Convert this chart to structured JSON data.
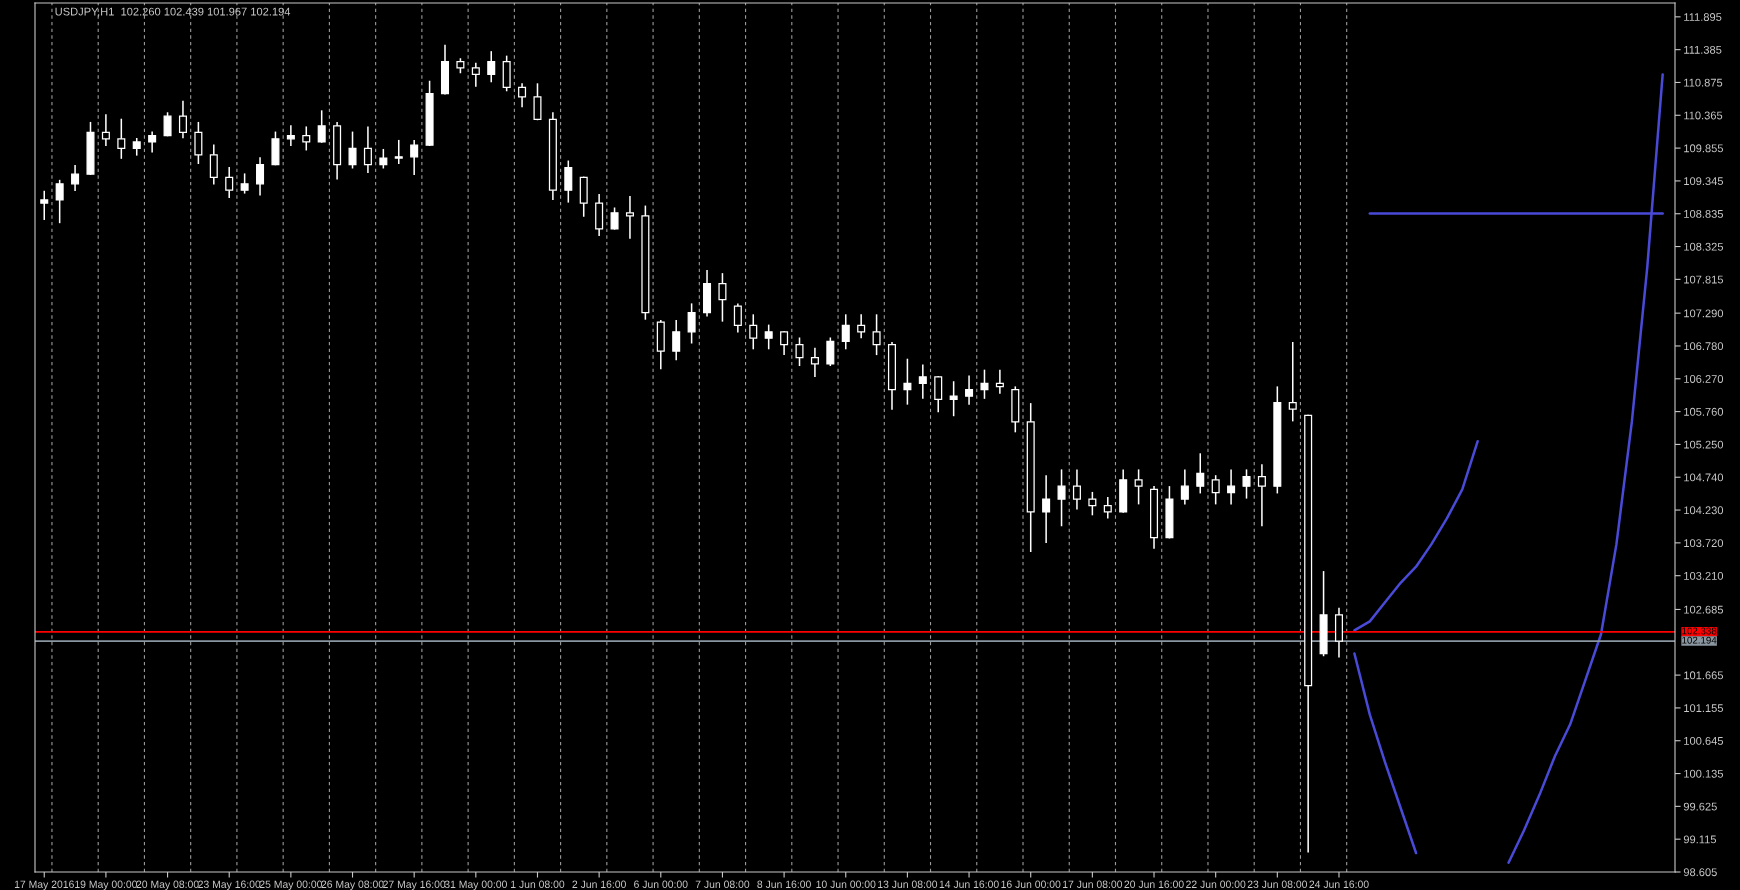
{
  "chart_data": {
    "type": "candlestick",
    "title": "USDJPY,H1  102.260 102.439 101.967 102.194",
    "color": "#ffffff",
    "categories": [
      "17 May 2016",
      null,
      null,
      null,
      "19 May 00:00",
      null,
      null,
      null,
      "20 May 08:00",
      null,
      null,
      null,
      "23 May 16:00",
      null,
      null,
      null,
      "25 May 00:00",
      null,
      null,
      null,
      "26 May 08:00",
      null,
      null,
      null,
      "27 May 16:00",
      null,
      null,
      null,
      "31 May 00:00",
      null,
      null,
      null,
      "1 Jun 08:00",
      null,
      null,
      null,
      "2 Jun 16:00",
      null,
      null,
      null,
      "6 Jun 00:00",
      null,
      null,
      null,
      "7 Jun 08:00",
      null,
      null,
      null,
      "8 Jun 16:00",
      null,
      null,
      null,
      "10 Jun 00:00",
      null,
      null,
      null,
      "13 Jun 08:00",
      null,
      null,
      null,
      "14 Jun 16:00",
      null,
      null,
      null,
      "16 Jun 00:00",
      null,
      null,
      null,
      "17 Jun 08:00",
      null,
      null,
      null,
      "20 Jun 16:00",
      null,
      null,
      null,
      "22 Jun 00:00",
      null,
      null,
      null,
      "23 Jun 08:00",
      null,
      null,
      null,
      "24 Jun 16:00",
      null,
      null,
      null,
      null,
      null,
      null,
      null,
      null,
      null,
      null,
      null,
      null,
      null,
      null,
      null,
      null,
      null,
      null,
      null,
      null,
      null
    ],
    "ohlc": [
      [
        109.0,
        109.18,
        108.75,
        109.05
      ],
      [
        109.05,
        109.35,
        108.7,
        109.3
      ],
      [
        109.3,
        109.58,
        109.2,
        109.45
      ],
      [
        109.45,
        110.25,
        109.45,
        110.1
      ],
      [
        110.1,
        110.37,
        109.9,
        110.0
      ],
      [
        110.0,
        110.3,
        109.7,
        109.85
      ],
      [
        109.85,
        110.0,
        109.75,
        109.95
      ],
      [
        109.95,
        110.1,
        109.8,
        110.05
      ],
      [
        110.05,
        110.4,
        110.05,
        110.35
      ],
      [
        110.35,
        110.58,
        110.02,
        110.1
      ],
      [
        110.1,
        110.25,
        109.62,
        109.75
      ],
      [
        109.75,
        109.9,
        109.3,
        109.4
      ],
      [
        109.4,
        109.55,
        109.09,
        109.2
      ],
      [
        109.2,
        109.45,
        109.16,
        109.3
      ],
      [
        109.3,
        109.7,
        109.13,
        109.6
      ],
      [
        109.6,
        110.1,
        109.6,
        110.0
      ],
      [
        110.0,
        110.2,
        109.9,
        110.05
      ],
      [
        110.05,
        110.18,
        109.83,
        109.95
      ],
      [
        109.95,
        110.43,
        109.95,
        110.2
      ],
      [
        110.2,
        110.25,
        109.38,
        109.6
      ],
      [
        109.6,
        110.1,
        109.55,
        109.85
      ],
      [
        109.85,
        110.18,
        109.48,
        109.6
      ],
      [
        109.6,
        109.83,
        109.55,
        109.7
      ],
      [
        109.7,
        109.97,
        109.62,
        109.72
      ],
      [
        109.72,
        109.97,
        109.45,
        109.9
      ],
      [
        109.9,
        110.89,
        109.9,
        110.7
      ],
      [
        110.7,
        111.45,
        110.7,
        111.2
      ],
      [
        111.2,
        111.24,
        111.03,
        111.1
      ],
      [
        111.1,
        111.17,
        110.82,
        111.0
      ],
      [
        111.0,
        111.35,
        110.89,
        111.2
      ],
      [
        111.2,
        111.28,
        110.75,
        110.8
      ],
      [
        110.8,
        110.85,
        110.5,
        110.65
      ],
      [
        110.65,
        110.85,
        110.3,
        110.3
      ],
      [
        110.3,
        110.4,
        109.06,
        109.2
      ],
      [
        109.2,
        109.65,
        109.02,
        109.55
      ],
      [
        109.4,
        109.4,
        108.8,
        109.0
      ],
      [
        109.0,
        109.13,
        108.5,
        108.6
      ],
      [
        108.6,
        108.92,
        108.6,
        108.85
      ],
      [
        108.85,
        109.1,
        108.46,
        108.8
      ],
      [
        108.8,
        108.95,
        107.2,
        107.3
      ],
      [
        107.15,
        107.17,
        106.43,
        106.7
      ],
      [
        106.7,
        107.17,
        106.57,
        107.0
      ],
      [
        107.0,
        107.43,
        106.83,
        107.3
      ],
      [
        107.3,
        107.95,
        107.25,
        107.75
      ],
      [
        107.75,
        107.9,
        107.17,
        107.5
      ],
      [
        107.4,
        107.43,
        107.0,
        107.1
      ],
      [
        107.1,
        107.26,
        106.74,
        106.9
      ],
      [
        106.9,
        107.1,
        106.74,
        107.0
      ],
      [
        107.0,
        107.0,
        106.65,
        106.8
      ],
      [
        106.8,
        106.9,
        106.48,
        106.6
      ],
      [
        106.6,
        106.74,
        106.31,
        106.5
      ],
      [
        106.5,
        106.9,
        106.48,
        106.85
      ],
      [
        106.85,
        107.26,
        106.74,
        107.1
      ],
      [
        107.1,
        107.26,
        106.91,
        107.0
      ],
      [
        107.0,
        107.26,
        106.65,
        106.8
      ],
      [
        106.8,
        106.83,
        105.8,
        106.1
      ],
      [
        106.1,
        106.57,
        105.88,
        106.2
      ],
      [
        106.2,
        106.48,
        105.97,
        106.3
      ],
      [
        106.3,
        106.3,
        105.76,
        105.95
      ],
      [
        105.95,
        106.22,
        105.7,
        106.0
      ],
      [
        106.0,
        106.31,
        105.88,
        106.1
      ],
      [
        106.1,
        106.4,
        105.97,
        106.2
      ],
      [
        106.2,
        106.4,
        106.05,
        106.15
      ],
      [
        106.1,
        106.14,
        105.45,
        105.6
      ],
      [
        105.6,
        105.88,
        103.59,
        104.2
      ],
      [
        104.2,
        104.76,
        103.73,
        104.4
      ],
      [
        104.4,
        104.85,
        103.99,
        104.6
      ],
      [
        104.6,
        104.85,
        104.25,
        104.4
      ],
      [
        104.4,
        104.5,
        104.16,
        104.3
      ],
      [
        104.3,
        104.42,
        104.11,
        104.2
      ],
      [
        104.2,
        104.85,
        104.2,
        104.7
      ],
      [
        104.7,
        104.85,
        104.33,
        104.6
      ],
      [
        104.55,
        104.59,
        103.64,
        103.8
      ],
      [
        103.8,
        104.59,
        103.8,
        104.4
      ],
      [
        104.4,
        104.85,
        104.33,
        104.6
      ],
      [
        104.6,
        105.1,
        104.5,
        104.8
      ],
      [
        104.7,
        104.76,
        104.33,
        104.5
      ],
      [
        104.5,
        104.85,
        104.33,
        104.6
      ],
      [
        104.6,
        104.85,
        104.42,
        104.75
      ],
      [
        104.75,
        104.93,
        103.99,
        104.6
      ],
      [
        104.6,
        106.14,
        104.5,
        105.9
      ],
      [
        105.9,
        106.83,
        105.62,
        105.8
      ],
      [
        105.7,
        105.7,
        98.92,
        101.5
      ],
      [
        102.0,
        103.27,
        101.97,
        102.6
      ],
      [
        102.6,
        102.7,
        101.95,
        102.194
      ],
      null,
      null,
      null,
      null,
      null,
      null,
      null,
      null,
      null,
      null,
      null,
      null,
      null,
      null,
      null,
      null,
      null,
      null,
      null,
      null,
      null
    ],
    "series": [
      {
        "type": "line",
        "color": "#4a4ad8",
        "values": [
          null,
          null,
          null,
          null,
          null,
          null,
          null,
          null,
          null,
          null,
          null,
          null,
          null,
          null,
          null,
          null,
          null,
          null,
          null,
          null,
          null,
          null,
          null,
          null,
          null,
          null,
          null,
          null,
          null,
          null,
          null,
          null,
          null,
          null,
          null,
          null,
          null,
          null,
          null,
          null,
          null,
          null,
          null,
          null,
          null,
          null,
          null,
          null,
          null,
          null,
          null,
          null,
          null,
          null,
          null,
          null,
          null,
          null,
          null,
          null,
          null,
          null,
          null,
          null,
          null,
          null,
          null,
          null,
          null,
          null,
          null,
          null,
          null,
          null,
          null,
          null,
          null,
          null,
          null,
          null,
          null,
          null,
          null,
          null,
          null,
          102.36,
          102.5,
          102.8,
          103.1,
          103.35,
          103.7,
          104.1,
          104.55,
          105.3,
          null,
          null,
          null,
          null,
          null,
          null,
          null,
          null,
          null,
          null,
          null,
          null
        ]
      },
      {
        "type": "line",
        "color": "#4a4ad8",
        "values": [
          null,
          null,
          null,
          null,
          null,
          null,
          null,
          null,
          null,
          null,
          null,
          null,
          null,
          null,
          null,
          null,
          null,
          null,
          null,
          null,
          null,
          null,
          null,
          null,
          null,
          null,
          null,
          null,
          null,
          null,
          null,
          null,
          null,
          null,
          null,
          null,
          null,
          null,
          null,
          null,
          null,
          null,
          null,
          null,
          null,
          null,
          null,
          null,
          null,
          null,
          null,
          null,
          null,
          null,
          null,
          null,
          null,
          null,
          null,
          null,
          null,
          null,
          null,
          null,
          null,
          null,
          null,
          null,
          null,
          null,
          null,
          null,
          null,
          null,
          null,
          null,
          null,
          null,
          null,
          null,
          null,
          null,
          null,
          null,
          null,
          102.0,
          101.05,
          100.3,
          99.6,
          98.9,
          null,
          null,
          null,
          null,
          null,
          98.75,
          99.25,
          99.8,
          100.4,
          100.9,
          101.6,
          102.3,
          103.7,
          105.6,
          108.0,
          111.0
        ]
      },
      {
        "type": "line",
        "color": "#4a4ad8",
        "values": [
          null,
          null,
          null,
          null,
          null,
          null,
          null,
          null,
          null,
          null,
          null,
          null,
          null,
          null,
          null,
          null,
          null,
          null,
          null,
          null,
          null,
          null,
          null,
          null,
          null,
          null,
          null,
          null,
          null,
          null,
          null,
          null,
          null,
          null,
          null,
          null,
          null,
          null,
          null,
          null,
          null,
          null,
          null,
          null,
          null,
          null,
          null,
          null,
          null,
          null,
          null,
          null,
          null,
          null,
          null,
          null,
          null,
          null,
          null,
          null,
          null,
          null,
          null,
          null,
          null,
          null,
          null,
          null,
          null,
          null,
          null,
          null,
          null,
          null,
          null,
          null,
          null,
          null,
          null,
          null,
          null,
          null,
          null,
          null,
          null,
          null,
          108.84,
          108.84,
          108.84,
          108.84,
          108.84,
          108.84,
          108.84,
          108.84,
          108.84,
          108.84,
          108.84,
          108.84,
          108.84,
          108.84,
          108.84,
          108.84,
          108.84,
          108.84,
          108.84,
          108.84
        ]
      }
    ],
    "ylim": [
      98.605,
      112.11
    ],
    "yticks": [
      111.895,
      111.385,
      110.875,
      110.365,
      109.855,
      109.345,
      108.835,
      108.325,
      107.815,
      {
        "value": 107.29,
        "label": "107.290"
      },
      {
        "value": 106.78,
        "label": "106.780"
      },
      {
        "value": 106.27,
        "label": "106.270"
      },
      {
        "value": 105.76,
        "label": "105.760"
      },
      {
        "value": 105.25,
        "label": "105.250"
      },
      {
        "value": 104.74,
        "label": "104.740"
      },
      {
        "value": 104.23,
        "label": "104.230"
      },
      {
        "value": 103.72,
        "label": "103.720"
      },
      {
        "value": 103.21,
        "label": "103.210"
      },
      102.685,
      101.665,
      101.155,
      100.645,
      100.135,
      99.625,
      99.115,
      98.605
    ],
    "ref_lines": [
      {
        "axis": "y",
        "value": 102.338,
        "label": "102.338",
        "color": "#ff0000"
      },
      {
        "axis": "y",
        "value": 102.194,
        "label": "102.194",
        "color": "#8a96a0"
      }
    ],
    "grid": "x"
  }
}
